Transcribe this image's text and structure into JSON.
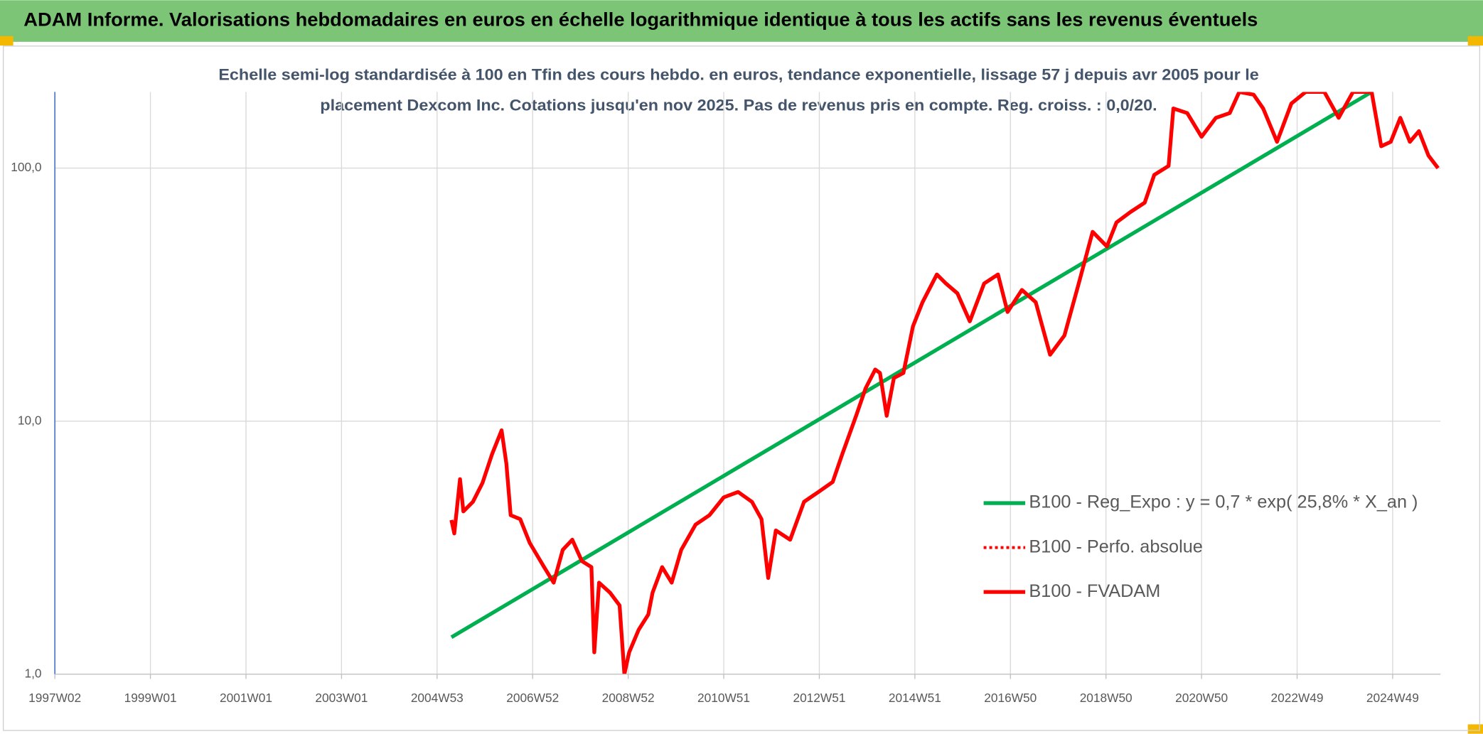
{
  "chart_data": {
    "type": "line",
    "title": "ADAM Informe. Valorisations hebdomadaires en euros en échelle logarithmique identique à tous les actifs sans les revenus éventuels",
    "subtitle": [
      "Echelle semi-log standardisée à 100 en Tfin des cours hebdo. en euros, tendance exponentielle, lissage 57 j depuis avr 2005 pour le",
      "placement Dexcom Inc. Cotations jusqu'en nov 2025. Pas de revenus pris en compte. Reg. croiss. : 0,0/20."
    ],
    "log_scale": true,
    "grid": true,
    "legend": "right",
    "xlim": [
      1997,
      2026
    ],
    "xticks": [
      {
        "value": 1997,
        "label": "1997W02"
      },
      {
        "value": 1999,
        "label": "1999W01"
      },
      {
        "value": 2001,
        "label": "2001W01"
      },
      {
        "value": 2003,
        "label": "2003W01"
      },
      {
        "value": 2005,
        "label": "2004W53"
      },
      {
        "value": 2007,
        "label": "2006W52"
      },
      {
        "value": 2009,
        "label": "2008W52"
      },
      {
        "value": 2011,
        "label": "2010W51"
      },
      {
        "value": 2013,
        "label": "2012W51"
      },
      {
        "value": 2015,
        "label": "2014W51"
      },
      {
        "value": 2017,
        "label": "2016W50"
      },
      {
        "value": 2019,
        "label": "2018W50"
      },
      {
        "value": 2021,
        "label": "2020W50"
      },
      {
        "value": 2023,
        "label": "2022W49"
      },
      {
        "value": 2025,
        "label": "2024W49"
      }
    ],
    "ylim": [
      1,
      200
    ],
    "yticks": [
      {
        "value": 1,
        "label": "1,0"
      },
      {
        "value": 10,
        "label": "10,0"
      },
      {
        "value": 100,
        "label": "100,0"
      }
    ],
    "series": [
      {
        "name": "B100 - Reg_Expo : y = 0,7 * exp( 25,8% *  X_an )",
        "color": "#00b050",
        "dash": "solid",
        "x": [
          2005.3,
          2024.56
        ],
        "values": [
          1.4,
          200
        ]
      },
      {
        "name": "B100 - Perfo. absolue",
        "color": "#ff0000",
        "dash": "dotted",
        "x": [],
        "values": []
      },
      {
        "name": "B100 - FVADAM",
        "color": "#ff0000",
        "dash": "solid",
        "x": [
          2005.3,
          2005.36,
          2005.48,
          2005.55,
          2005.75,
          2005.95,
          2006.15,
          2006.35,
          2006.45,
          2006.54,
          2006.74,
          2006.94,
          2007.24,
          2007.44,
          2007.63,
          2007.83,
          2008.03,
          2008.23,
          2008.29,
          2008.39,
          2008.62,
          2008.82,
          2008.92,
          2009.02,
          2009.22,
          2009.42,
          2009.51,
          2009.71,
          2009.91,
          2010.11,
          2010.41,
          2010.7,
          2011.0,
          2011.3,
          2011.59,
          2011.79,
          2011.93,
          2012.09,
          2012.39,
          2012.68,
          2012.98,
          2013.28,
          2013.48,
          2013.77,
          2013.97,
          2014.17,
          2014.27,
          2014.41,
          2014.56,
          2014.76,
          2014.96,
          2015.16,
          2015.46,
          2015.65,
          2015.89,
          2016.15,
          2016.45,
          2016.74,
          2016.94,
          2017.24,
          2017.53,
          2017.83,
          2018.13,
          2018.43,
          2018.72,
          2019.02,
          2019.22,
          2019.51,
          2019.81,
          2020.01,
          2020.31,
          2020.41,
          2020.7,
          2021.0,
          2021.3,
          2021.59,
          2021.79,
          2022.09,
          2022.29,
          2022.58,
          2022.88,
          2023.18,
          2023.57,
          2023.87,
          2024.17,
          2024.56,
          2024.76,
          2024.96,
          2025.16,
          2025.36,
          2025.55,
          2025.75,
          2025.95
        ],
        "values": [
          4.07,
          3.6,
          5.9,
          4.4,
          4.8,
          5.7,
          7.4,
          9.2,
          6.8,
          4.25,
          4.1,
          3.3,
          2.65,
          2.3,
          3.1,
          3.4,
          2.8,
          2.65,
          1.22,
          2.3,
          2.1,
          1.87,
          1.0,
          1.22,
          1.5,
          1.72,
          2.1,
          2.65,
          2.3,
          3.1,
          3.9,
          4.25,
          5.0,
          5.25,
          4.8,
          4.1,
          2.4,
          3.7,
          3.4,
          4.8,
          5.25,
          5.75,
          7.4,
          10.5,
          13.5,
          16,
          15.5,
          10.5,
          14.8,
          15.5,
          23.7,
          29.5,
          38,
          35,
          32,
          24.8,
          35,
          38,
          27,
          33,
          29.5,
          18.3,
          21.8,
          35,
          56,
          49,
          61,
          67,
          73,
          94,
          102,
          172,
          165,
          133,
          158,
          165,
          200,
          195,
          172,
          127,
          180,
          200,
          200,
          158,
          200,
          200,
          122,
          127,
          158,
          127,
          140,
          112,
          100
        ]
      }
    ]
  }
}
